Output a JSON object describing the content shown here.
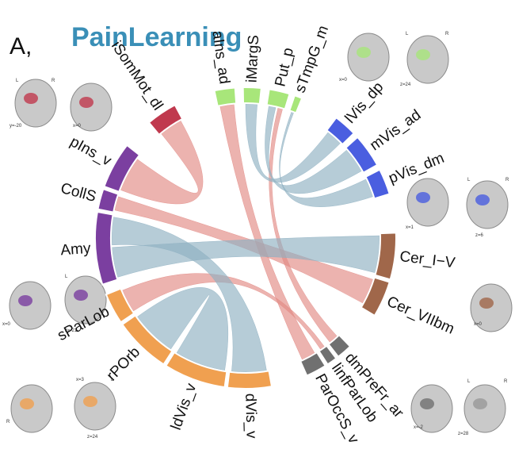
{
  "header": {
    "panel": "A,",
    "title": "PainLearning"
  },
  "nodes": [
    {
      "label": "iSomMot_dl"
    },
    {
      "label": "aIns_ad"
    },
    {
      "label": "iMargS"
    },
    {
      "label": "Put_p"
    },
    {
      "label": "sTmpG_m"
    },
    {
      "label": "lVis_dp"
    },
    {
      "label": "mVis_ad"
    },
    {
      "label": "pVis_dm"
    },
    {
      "label": "Cer_I−V"
    },
    {
      "label": "Cer_VIIbm"
    },
    {
      "label": "dmPreFr_ar"
    },
    {
      "label": "linfParLob"
    },
    {
      "label": "ParOccS_v"
    },
    {
      "label": "dVis_v"
    },
    {
      "label": "ldVis_v"
    },
    {
      "label": "rPOrb"
    },
    {
      "label": "sParLob"
    },
    {
      "label": "Amy"
    },
    {
      "label": "CollS"
    },
    {
      "label": "pIns_v"
    }
  ],
  "thumbnails": [
    {
      "labels": [
        "L",
        "R",
        "y=-20",
        "x=0"
      ]
    },
    {
      "labels": [
        "x=0",
        "L",
        "R",
        "z=24"
      ]
    },
    {
      "labels": [
        "x=1",
        "L",
        "R",
        "z=6"
      ]
    },
    {
      "labels": [
        "L",
        "R",
        "x=0",
        "z=-21"
      ]
    },
    {
      "labels": [
        "x=0"
      ]
    },
    {
      "labels": [
        "x=3",
        "L",
        "R",
        "z=24"
      ]
    },
    {
      "labels": [
        "x=-2",
        "L",
        "R",
        "z=28"
      ]
    }
  ]
}
